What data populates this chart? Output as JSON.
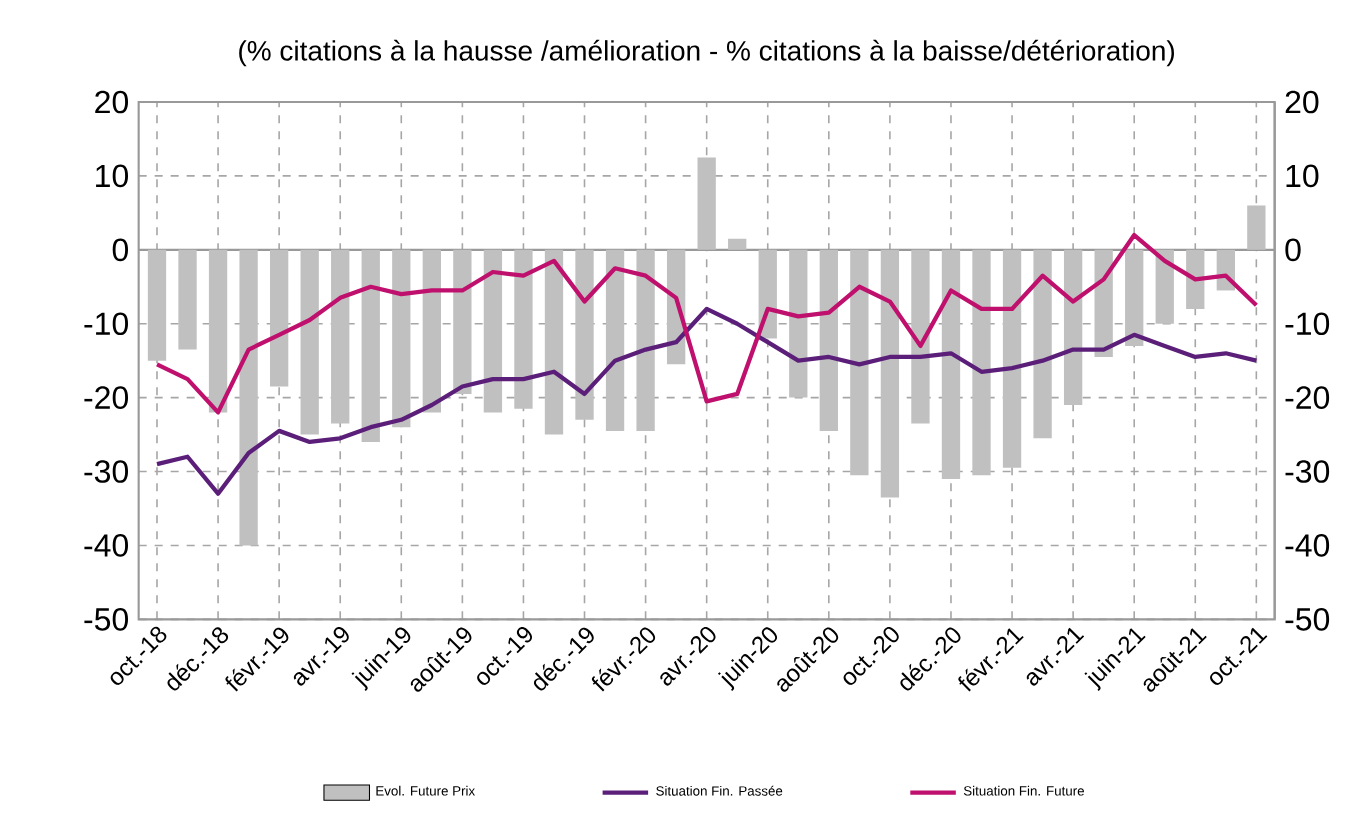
{
  "chart_data": {
    "type": "bar",
    "title": "(% citations à la hausse /amélioration -  % citations à la baisse/détérioration)",
    "categories": [
      "oct.-18",
      null,
      "déc.-18",
      null,
      "févr.-19",
      null,
      "avr.-19",
      null,
      "juin-19",
      null,
      "août-19",
      null,
      "oct.-19",
      null,
      "déc.-19",
      null,
      "févr.-20",
      null,
      "avr.-20",
      null,
      "juin-20",
      null,
      "août-20",
      null,
      "oct.-20",
      null,
      "déc.-20",
      null,
      "févr.-21",
      null,
      "avr.-21",
      null,
      "juin-21",
      null,
      "août-21",
      null,
      "oct.-21"
    ],
    "series": [
      {
        "name": "Evol. Future Prix",
        "color": "#c0c0c0",
        "values": [
          -15,
          -13.5,
          -22,
          -40,
          -18.5,
          -25,
          -23.5,
          -26,
          -24,
          -22,
          -19.5,
          -22,
          -21.5,
          -25,
          -23,
          -24.5,
          -24.5,
          -15.5,
          12.5,
          1.5,
          -12,
          -20,
          -24.5,
          -30.5,
          -33.5,
          -23.5,
          -31,
          -30.5,
          -29.5,
          -25.5,
          -21,
          -14.5,
          -13,
          -10,
          -8,
          -5.5,
          6
        ]
      },
      {
        "name": "Situation Fin. Passée",
        "type": "line",
        "color": "#5b1f7a",
        "values": [
          -29,
          -28,
          -33,
          -27.5,
          -24.5,
          -26,
          -25.5,
          -24,
          -23,
          -21,
          -18.5,
          -17.5,
          -17.5,
          -16.5,
          -19.5,
          -15,
          -13.5,
          -12.5,
          -8,
          -10,
          -12.5,
          -15,
          -14.5,
          -15.5,
          -14.5,
          -14.5,
          -14,
          -16.5,
          -16,
          -15,
          -13.5,
          -13.5,
          -11.5,
          -13,
          -14.5,
          -14,
          -15
        ]
      },
      {
        "name": "Situation Fin. Future",
        "type": "line",
        "color": "#c0106e",
        "values": [
          -15.5,
          -17.5,
          -22,
          -13.5,
          -11.5,
          -9.5,
          -6.5,
          -5,
          -6,
          -5.5,
          -5.5,
          -3,
          -3.5,
          -1.5,
          -7,
          -2.5,
          -3.5,
          -6.5,
          -20.5,
          -19.5,
          -8,
          -9,
          -8.5,
          -5,
          -7,
          -13,
          -5.5,
          -8,
          -8,
          -3.5,
          -7,
          -4,
          2,
          -1.5,
          -4,
          -3.5,
          -7.5
        ]
      }
    ],
    "ylim": [
      -50,
      20
    ],
    "yticks": [
      -50,
      -40,
      -30,
      -20,
      -10,
      0,
      10,
      20
    ],
    "y2lim": [
      -50,
      20
    ],
    "y2ticks": [
      -50,
      -40,
      -30,
      -20,
      -10,
      0,
      10,
      20
    ],
    "grid": true,
    "legend": "bottom",
    "line_style": "solid",
    "marker": "none"
  }
}
